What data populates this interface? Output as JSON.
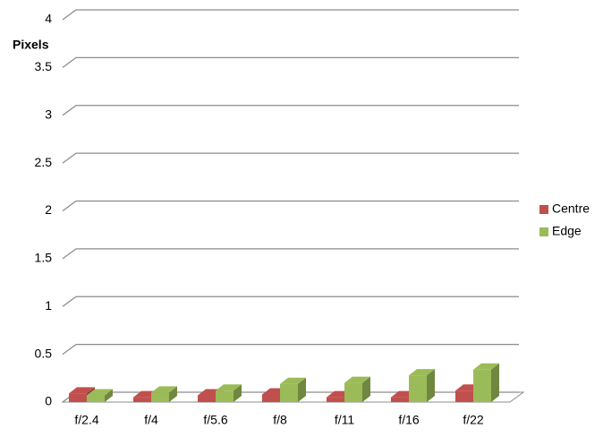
{
  "chart_data": {
    "type": "bar3d",
    "y_label": "Pixels",
    "categories": [
      "f/2.4",
      "f/4",
      "f/5.6",
      "f/8",
      "f/11",
      "f/16",
      "f/22"
    ],
    "series": [
      {
        "name": "Centre",
        "color": "#c0504d",
        "values": [
          0.09,
          0.05,
          0.07,
          0.08,
          0.05,
          0.05,
          0.12
        ]
      },
      {
        "name": "Edge",
        "color": "#9bbb59",
        "values": [
          0.07,
          0.1,
          0.12,
          0.19,
          0.2,
          0.28,
          0.34
        ]
      }
    ],
    "ylim": [
      0,
      4
    ],
    "yticks": [
      0,
      0.5,
      1,
      1.5,
      2,
      2.5,
      3,
      3.5,
      4
    ],
    "grid": true,
    "legend": "right"
  }
}
